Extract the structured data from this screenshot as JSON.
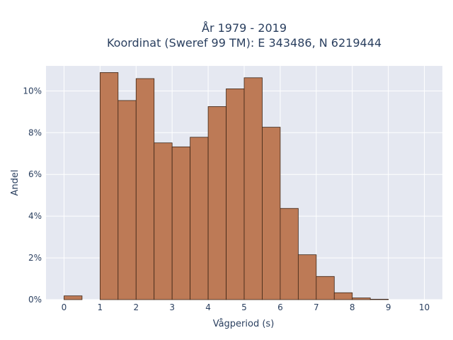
{
  "chart_data": {
    "type": "bar",
    "title_line1": "År 1979 - 2019",
    "title_line2": "Koordinat (Sweref 99 TM): E 343486, N 6219444",
    "xlabel": "Vågperiod (s)",
    "ylabel": "Andel",
    "xlim": [
      -0.5,
      10.5
    ],
    "ylim": [
      0,
      0.112
    ],
    "bin_width": 0.5,
    "x_ticks": [
      0,
      1,
      2,
      3,
      4,
      5,
      6,
      7,
      8,
      9,
      10
    ],
    "y_ticks": [
      0,
      0.02,
      0.04,
      0.06,
      0.08,
      0.1
    ],
    "y_tick_labels": [
      "0%",
      "2%",
      "4%",
      "6%",
      "8%",
      "10%"
    ],
    "bins": [
      {
        "start": 0.0,
        "value": 0.0018
      },
      {
        "start": 0.5,
        "value": 0.0
      },
      {
        "start": 1.0,
        "value": 0.1088
      },
      {
        "start": 1.5,
        "value": 0.0954
      },
      {
        "start": 2.0,
        "value": 0.1059
      },
      {
        "start": 2.5,
        "value": 0.0751
      },
      {
        "start": 3.0,
        "value": 0.0732
      },
      {
        "start": 3.5,
        "value": 0.0778
      },
      {
        "start": 4.0,
        "value": 0.0925
      },
      {
        "start": 4.5,
        "value": 0.101
      },
      {
        "start": 5.0,
        "value": 0.1063
      },
      {
        "start": 5.5,
        "value": 0.0826
      },
      {
        "start": 6.0,
        "value": 0.0437
      },
      {
        "start": 6.5,
        "value": 0.0215
      },
      {
        "start": 7.0,
        "value": 0.0111
      },
      {
        "start": 7.5,
        "value": 0.0033
      },
      {
        "start": 8.0,
        "value": 0.0008
      },
      {
        "start": 8.5,
        "value": 0.0002
      }
    ],
    "bar_color": "#bd7a56",
    "bar_edge_color": "#3d2516",
    "plot_bg": "#e5e8f1",
    "grid": true
  }
}
